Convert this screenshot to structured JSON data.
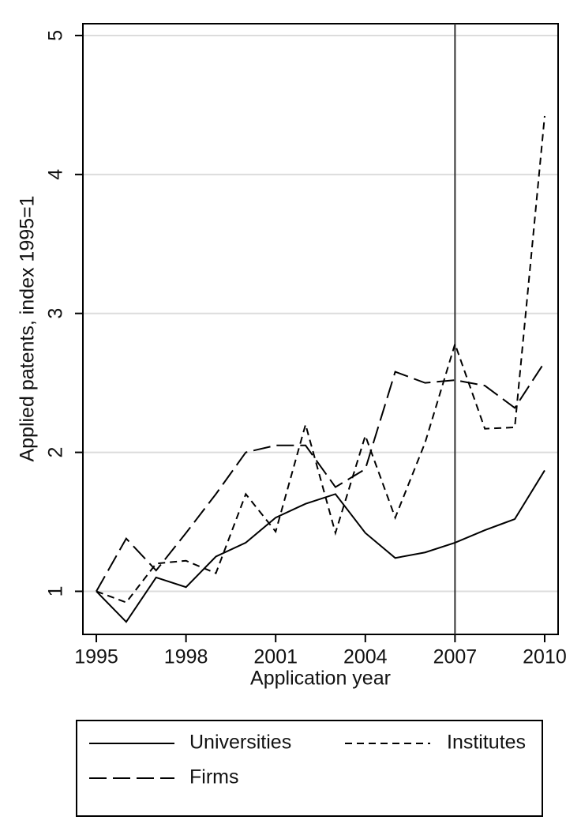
{
  "chart_data": {
    "type": "line",
    "x_label": "Application year",
    "y_label": "Applied patents, index 1995=1",
    "x": [
      1995,
      1996,
      1997,
      1998,
      1999,
      2000,
      2001,
      2002,
      2003,
      2004,
      2005,
      2006,
      2007,
      2008,
      2009,
      2010
    ],
    "series": [
      {
        "name": "Universities",
        "color": "#000000",
        "dash": "solid",
        "values": [
          1.0,
          0.78,
          1.1,
          1.03,
          1.25,
          1.35,
          1.53,
          1.63,
          1.7,
          1.42,
          1.24,
          1.28,
          1.35,
          1.44,
          1.52,
          1.87
        ]
      },
      {
        "name": "Institutes",
        "color": "#000000",
        "dash": "short",
        "values": [
          1.0,
          0.92,
          1.2,
          1.22,
          1.13,
          1.7,
          1.43,
          2.2,
          1.42,
          2.12,
          1.53,
          2.07,
          2.78,
          2.17,
          2.18,
          4.42
        ]
      },
      {
        "name": "Firms",
        "color": "#000000",
        "dash": "long",
        "values": [
          1.0,
          1.38,
          1.15,
          1.42,
          1.7,
          2.0,
          2.05,
          2.05,
          1.75,
          1.88,
          2.58,
          2.5,
          2.52,
          2.48,
          2.32,
          2.65
        ]
      }
    ],
    "xlim": [
      1994.55,
      2010.45
    ],
    "xticks": [
      1995,
      1998,
      2001,
      2004,
      2007,
      2010
    ],
    "ylim": [
      0.69,
      5.085
    ],
    "yticks": [
      1,
      2,
      3,
      4,
      5
    ],
    "vline": 2007,
    "grid": true
  }
}
